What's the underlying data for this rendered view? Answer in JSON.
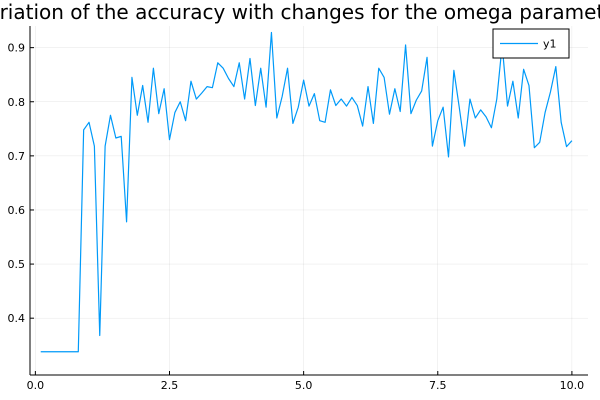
{
  "chart_data": {
    "type": "line",
    "title": "Variation of the accuracy with changes for the omega parameter",
    "xlabel": "",
    "ylabel": "",
    "xlim": [
      -0.1,
      10.3
    ],
    "ylim": [
      0.295,
      0.94
    ],
    "grid": true,
    "legend_position": "top-right",
    "x_ticks": [
      0.0,
      2.5,
      5.0,
      7.5,
      10.0
    ],
    "x_tick_labels": [
      "0.0",
      "2.5",
      "5.0",
      "7.5",
      "10.0"
    ],
    "y_ticks": [
      0.4,
      0.5,
      0.6,
      0.7,
      0.8,
      0.9
    ],
    "y_tick_labels": [
      "0.4",
      "0.5",
      "0.6",
      "0.7",
      "0.8",
      "0.9"
    ],
    "series": [
      {
        "name": "y1",
        "color": "#009af9",
        "x": [
          0.1,
          0.2,
          0.3,
          0.4,
          0.5,
          0.6,
          0.7,
          0.8,
          0.9,
          1.0,
          1.1,
          1.2,
          1.3,
          1.4,
          1.5,
          1.6,
          1.7,
          1.8,
          1.9,
          2.0,
          2.1,
          2.2,
          2.3,
          2.4,
          2.5,
          2.6,
          2.7,
          2.8,
          2.9,
          3.0,
          3.1,
          3.2,
          3.3,
          3.4,
          3.5,
          3.6,
          3.7,
          3.8,
          3.9,
          4.0,
          4.1,
          4.2,
          4.3,
          4.4,
          4.5,
          4.6,
          4.7,
          4.8,
          4.9,
          5.0,
          5.1,
          5.2,
          5.3,
          5.4,
          5.5,
          5.6,
          5.7,
          5.8,
          5.9,
          6.0,
          6.1,
          6.2,
          6.3,
          6.4,
          6.5,
          6.6,
          6.7,
          6.8,
          6.9,
          7.0,
          7.1,
          7.2,
          7.3,
          7.4,
          7.5,
          7.6,
          7.7,
          7.8,
          7.9,
          8.0,
          8.1,
          8.2,
          8.3,
          8.4,
          8.5,
          8.6,
          8.7,
          8.8,
          8.9,
          9.0,
          9.1,
          9.2,
          9.3,
          9.4,
          9.5,
          9.6,
          9.7,
          9.8,
          9.9,
          10.0
        ],
        "y": [
          0.338,
          0.338,
          0.338,
          0.338,
          0.338,
          0.338,
          0.338,
          0.338,
          0.748,
          0.762,
          0.718,
          0.368,
          0.718,
          0.775,
          0.733,
          0.736,
          0.578,
          0.845,
          0.775,
          0.83,
          0.762,
          0.862,
          0.778,
          0.824,
          0.73,
          0.78,
          0.8,
          0.765,
          0.838,
          0.805,
          0.816,
          0.828,
          0.826,
          0.872,
          0.862,
          0.843,
          0.828,
          0.872,
          0.805,
          0.88,
          0.793,
          0.862,
          0.79,
          0.928,
          0.77,
          0.81,
          0.862,
          0.76,
          0.79,
          0.84,
          0.792,
          0.815,
          0.765,
          0.762,
          0.822,
          0.793,
          0.805,
          0.792,
          0.808,
          0.793,
          0.755,
          0.828,
          0.76,
          0.862,
          0.845,
          0.777,
          0.824,
          0.782,
          0.905,
          0.778,
          0.803,
          0.82,
          0.882,
          0.718,
          0.765,
          0.79,
          0.698,
          0.858,
          0.79,
          0.718,
          0.805,
          0.77,
          0.785,
          0.772,
          0.752,
          0.805,
          0.905,
          0.792,
          0.838,
          0.77,
          0.86,
          0.83,
          0.715,
          0.725,
          0.78,
          0.818,
          0.865,
          0.762,
          0.717,
          0.728
        ]
      }
    ]
  }
}
